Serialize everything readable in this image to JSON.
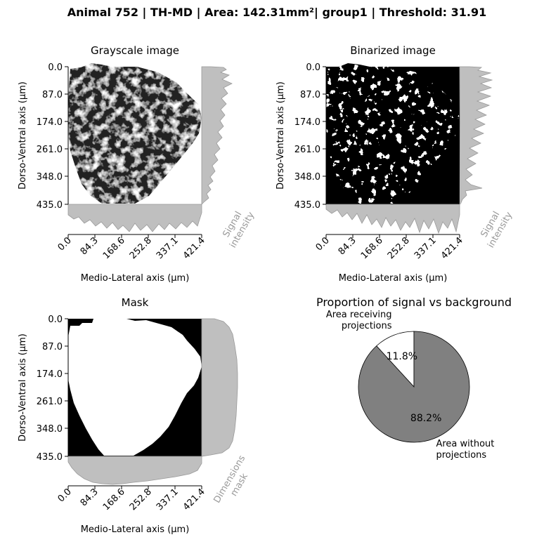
{
  "figure": {
    "suptitle": "Animal 752 | TH-MD | Area: 142.31mm²| group1 | Threshold: 31.91"
  },
  "panels": {
    "grayscale": {
      "title": "Grayscale image",
      "xlabel": "Medio-Lateral axis (µm)",
      "ylabel": "Dorso-Ventral axis (µm)",
      "xticks": [
        "0.0",
        "84.3",
        "168.6",
        "252.8",
        "337.1",
        "421.4"
      ],
      "yticks": [
        "0.0",
        "87.0",
        "174.0",
        "261.0",
        "348.0",
        "435.0"
      ],
      "side_label": [
        "Signal",
        "intensity"
      ]
    },
    "binarized": {
      "title": "Binarized image",
      "xlabel": "Medio-Lateral axis (µm)",
      "ylabel": "Dorso-Ventral axis (µm)",
      "xticks": [
        "0.0",
        "84.3",
        "168.6",
        "252.8",
        "337.1",
        "421.4"
      ],
      "yticks": [
        "0.0",
        "87.0",
        "174.0",
        "261.0",
        "348.0",
        "435.0"
      ],
      "side_label": [
        "Signal",
        "intensity"
      ]
    },
    "mask": {
      "title": "Mask",
      "xlabel": "Medio-Lateral axis (µm)",
      "ylabel": "Dorso-Ventral axis (µm)",
      "xticks": [
        "0.0",
        "84.3",
        "168.6",
        "252.8",
        "337.1",
        "421.4"
      ],
      "yticks": [
        "0.0",
        "87.0",
        "174.0",
        "261.0",
        "348.0",
        "435.0"
      ],
      "side_label": [
        "Dimensions",
        "mask"
      ]
    },
    "pie": {
      "title": "Proportion of signal vs background"
    }
  },
  "colors": {
    "profile_fill": "#bfbfbf",
    "profile_edge": "#999999",
    "pie_signal": "#ffffff",
    "pie_background": "#808080",
    "side_label": "#999999"
  },
  "chart_data": [
    {
      "type": "heatmap",
      "title": "Grayscale image",
      "xlabel": "Medio-Lateral axis (µm)",
      "ylabel": "Dorso-Ventral axis (µm)",
      "xlim": [
        0.0,
        421.4
      ],
      "ylim": [
        435.0,
        0.0
      ],
      "note_side_profiles": "signal intensity profiles along both axes"
    },
    {
      "type": "heatmap",
      "title": "Binarized image",
      "xlabel": "Medio-Lateral axis (µm)",
      "ylabel": "Dorso-Ventral axis (µm)",
      "xlim": [
        0.0,
        421.4
      ],
      "ylim": [
        435.0,
        0.0
      ]
    },
    {
      "type": "heatmap",
      "title": "Mask",
      "xlabel": "Medio-Lateral axis (µm)",
      "ylabel": "Dorso-Ventral axis (µm)",
      "xlim": [
        0.0,
        421.4
      ],
      "ylim": [
        435.0,
        0.0
      ]
    },
    {
      "type": "pie",
      "title": "Proportion of signal vs background",
      "labels": [
        "Area receiving projections",
        "Area without projections"
      ],
      "values": [
        11.8,
        88.2
      ],
      "value_labels": [
        "11.8%",
        "88.2%"
      ],
      "colors": [
        "#ffffff",
        "#808080"
      ]
    }
  ]
}
